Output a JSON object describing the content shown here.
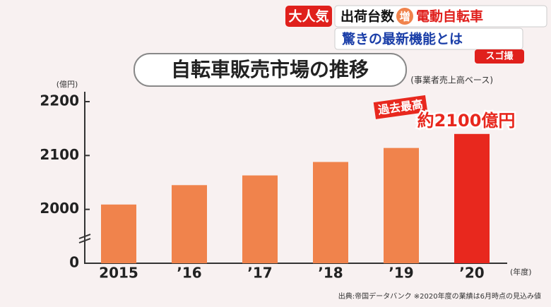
{
  "header": {
    "badge": "大人気",
    "line1_a": "出荷台数",
    "line1_mark": "増",
    "line1_b": "電動自転車",
    "line2": "驚きの最新機能とは",
    "logo": "スゴ撮"
  },
  "chart_data": {
    "type": "bar",
    "title": "自転車販売市場の推移",
    "subtitle": "(事業者売上高ベース)",
    "y_unit": "(億円)",
    "x_unit": "(年度)",
    "categories": [
      "2015",
      "’16",
      "’17",
      "’18",
      "’19",
      "’20"
    ],
    "values": [
      2009,
      2045,
      2063,
      2088,
      2114,
      2140
    ],
    "colors": [
      "#f0834c",
      "#f0834c",
      "#f0834c",
      "#f0834c",
      "#f0834c",
      "#e8281e"
    ],
    "ylim": [
      0,
      2200
    ],
    "yticks": [
      0,
      2000,
      2100,
      2200
    ],
    "annotations": [
      "過去最高",
      "約2100億円"
    ],
    "source": "出典:帝国データバンク ※2020年度の業績は6月時点の見込み値"
  }
}
